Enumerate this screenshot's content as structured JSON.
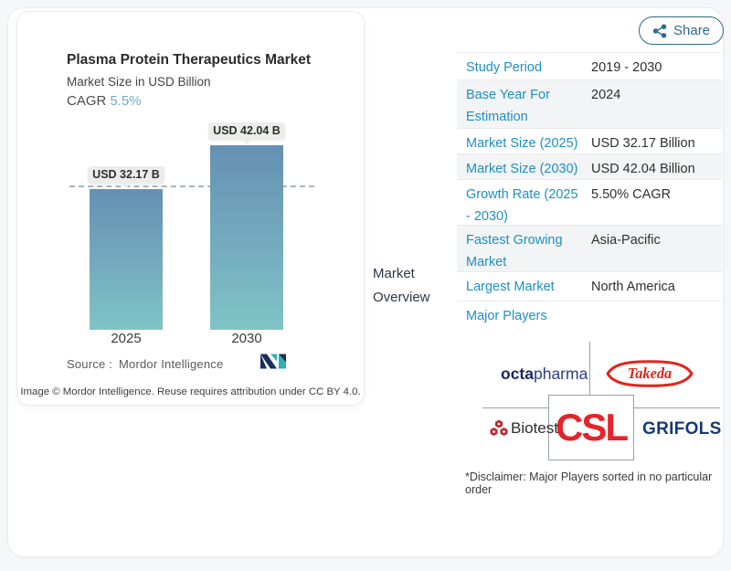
{
  "share": {
    "label": "Share"
  },
  "chart_card": {
    "title": "Plasma Protein Therapeutics Market",
    "subtitle": "Market Size in USD Billion",
    "cagr_label": "CAGR",
    "cagr_value": "5.5%",
    "source_prefix": "Source :",
    "source_name": "Mordor Intelligence",
    "attribution": "Image © Mordor Intelligence. Reuse requires attribution under CC BY 4.0."
  },
  "chart_data": {
    "type": "bar",
    "title": "Plasma Protein Therapeutics Market",
    "subtitle": "Market Size in USD Billion",
    "unit": "USD Billion",
    "cagr": "5.5%",
    "categories": [
      "2025",
      "2030"
    ],
    "values": [
      32.17,
      42.04
    ],
    "bar_labels": [
      "USD 32.17 B",
      "USD 42.04 B"
    ],
    "ylim": [
      0,
      45
    ],
    "reference_line_value": 32.17,
    "grid": false,
    "legend": false,
    "bar_gradient_top": "#6590b3",
    "bar_gradient_bottom": "#80c3c7"
  },
  "market_overview_label": "Market Overview",
  "table": {
    "rows": [
      {
        "label": "Study Period",
        "value": "2019 - 2030"
      },
      {
        "label": "Base Year For Estimation",
        "value": "2024"
      },
      {
        "label": "Market Size (2025)",
        "value": "USD 32.17 Billion"
      },
      {
        "label": "Market Size (2030)",
        "value": "USD 42.04 Billion"
      },
      {
        "label": "Growth Rate (2025 - 2030)",
        "value": "5.50% CAGR"
      },
      {
        "label": "Fastest Growing Market",
        "value": "Asia-Pacific"
      },
      {
        "label": "Largest Market",
        "value": "North America"
      },
      {
        "label": "Major Players",
        "value": ""
      }
    ]
  },
  "players": {
    "octapharma_bold": "octa",
    "octapharma_light": "pharma",
    "takeda_label": "Takeda",
    "biotest_label": "Biotest",
    "csl_label": "CSL",
    "grifols_label": "GRIFOLS",
    "disclaimer": "*Disclaimer: Major Players sorted in no particular order"
  },
  "colors": {
    "table_label_blue": "#1e8fc2",
    "cagr_blue": "#74a9cb",
    "share_teal": "#2e6b85",
    "bar_top": "#6590b3",
    "bar_bottom": "#80c3c7",
    "row_alt_bg": "#f2f4f5",
    "takeda_red": "#e1251b",
    "csl_red": "#e4232b",
    "biotest_red": "#c0272d",
    "octapharma_navy": "#16255f",
    "grifols_navy": "#153a72",
    "mi_navy": "#1d2e5c",
    "mi_teal": "#2fb0b5"
  }
}
